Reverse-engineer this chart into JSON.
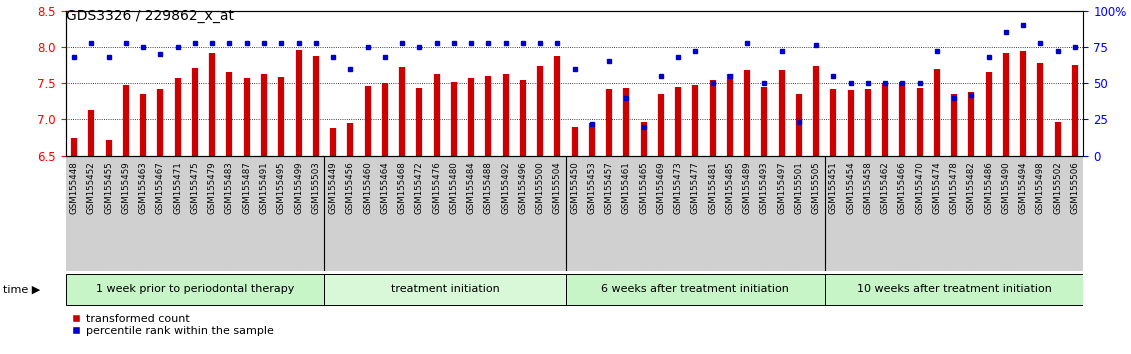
{
  "title": "GDS3326 / 229862_x_at",
  "samples": [
    "GSM155448",
    "GSM155452",
    "GSM155455",
    "GSM155459",
    "GSM155463",
    "GSM155467",
    "GSM155471",
    "GSM155475",
    "GSM155479",
    "GSM155483",
    "GSM155487",
    "GSM155491",
    "GSM155495",
    "GSM155499",
    "GSM155503",
    "GSM155449",
    "GSM155456",
    "GSM155460",
    "GSM155464",
    "GSM155468",
    "GSM155472",
    "GSM155476",
    "GSM155480",
    "GSM155484",
    "GSM155488",
    "GSM155492",
    "GSM155496",
    "GSM155500",
    "GSM155504",
    "GSM155450",
    "GSM155453",
    "GSM155457",
    "GSM155461",
    "GSM155465",
    "GSM155469",
    "GSM155473",
    "GSM155477",
    "GSM155481",
    "GSM155485",
    "GSM155489",
    "GSM155493",
    "GSM155497",
    "GSM155501",
    "GSM155505",
    "GSM155451",
    "GSM155454",
    "GSM155458",
    "GSM155462",
    "GSM155466",
    "GSM155470",
    "GSM155474",
    "GSM155478",
    "GSM155482",
    "GSM155486",
    "GSM155490",
    "GSM155494",
    "GSM155498",
    "GSM155502",
    "GSM155506"
  ],
  "bar_values": [
    6.75,
    7.13,
    6.72,
    7.47,
    7.35,
    7.42,
    7.57,
    7.71,
    7.91,
    7.65,
    7.57,
    7.62,
    7.58,
    7.96,
    7.87,
    6.88,
    6.95,
    7.46,
    7.5,
    7.72,
    7.44,
    7.63,
    7.52,
    7.57,
    7.6,
    7.63,
    7.55,
    7.74,
    7.88,
    6.9,
    6.95,
    7.42,
    7.44,
    6.97,
    7.35,
    7.45,
    7.47,
    7.55,
    7.62,
    7.68,
    7.45,
    7.68,
    7.35,
    7.73,
    7.42,
    7.4,
    7.42,
    7.5,
    7.51,
    7.43,
    7.69,
    7.35,
    7.38,
    7.66,
    7.92,
    7.94,
    7.78,
    6.96,
    7.75
  ],
  "percentile_values": [
    68,
    78,
    68,
    78,
    75,
    70,
    75,
    78,
    78,
    78,
    78,
    78,
    78,
    78,
    78,
    68,
    60,
    75,
    68,
    78,
    75,
    78,
    78,
    78,
    78,
    78,
    78,
    78,
    78,
    60,
    22,
    65,
    40,
    20,
    55,
    68,
    72,
    50,
    55,
    78,
    50,
    72,
    23,
    76,
    55,
    50,
    50,
    50,
    50,
    50,
    72,
    40,
    42,
    68,
    85,
    90,
    78,
    72,
    75
  ],
  "group_labels": [
    "1 week prior to periodontal therapy",
    "treatment initiation",
    "6 weeks after treatment initiation",
    "10 weeks after treatment initiation"
  ],
  "group_sizes": [
    15,
    14,
    15,
    15
  ],
  "group_colors": [
    "#c8f5c8",
    "#d8f8d8",
    "#c8f5c8",
    "#c8f5c8"
  ],
  "ylim_left": [
    6.5,
    8.5
  ],
  "ylim_right": [
    0,
    100
  ],
  "yticks_left": [
    6.5,
    7.0,
    7.5,
    8.0,
    8.5
  ],
  "yticks_right": [
    0,
    25,
    50,
    75,
    100
  ],
  "bar_color": "#cc0000",
  "dot_color": "#0000cc",
  "title_fontsize": 10,
  "tick_fontsize": 6.2,
  "label_fontsize": 8,
  "group_fontsize": 8
}
